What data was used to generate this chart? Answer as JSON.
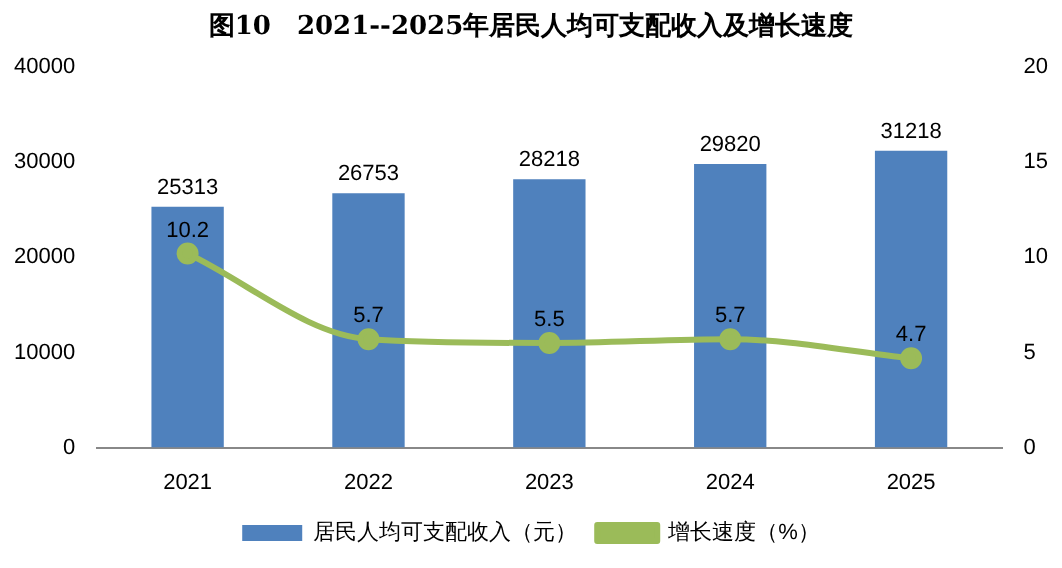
{
  "chart_data": {
    "type": "bar",
    "title": "图10　2021--2025年居民人均可支配收入及增长速度",
    "categories": [
      "2021",
      "2022",
      "2023",
      "2024",
      "2025"
    ],
    "series": [
      {
        "name": "居民人均可支配收入（元）",
        "color": "#4f81bd",
        "values": [
          25313,
          26753,
          28218,
          29820,
          31218
        ]
      },
      {
        "name": "增长速度（%）",
        "type": "line",
        "axis": "y2",
        "color": "#9bbb59",
        "values": [
          10.2,
          5.7,
          5.5,
          5.7,
          4.7
        ]
      }
    ],
    "ylim": [
      0,
      40000
    ],
    "yticks": [
      0,
      10000,
      20000,
      30000,
      40000
    ],
    "y2lim": [
      0,
      20
    ],
    "y2ticks": [
      0,
      5,
      10,
      15,
      20
    ],
    "data_labels": true,
    "legend": "bottom",
    "grid": false,
    "marker": "circle",
    "line_style": "solid"
  }
}
